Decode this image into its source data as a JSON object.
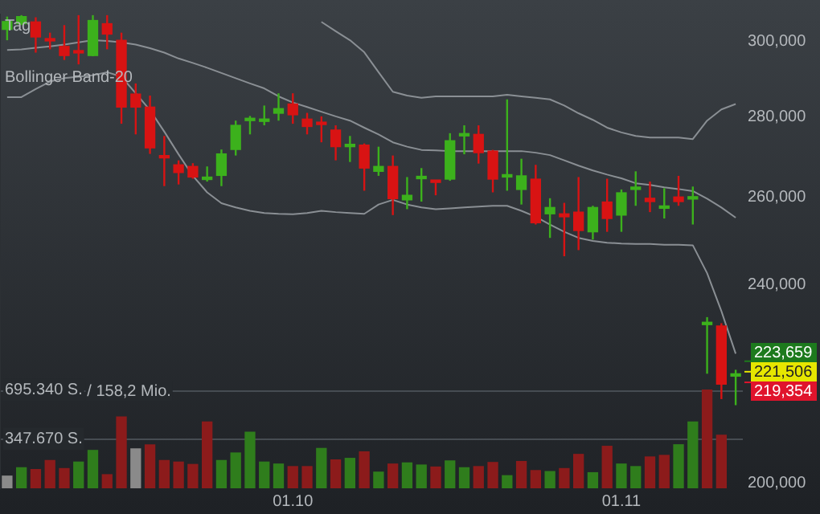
{
  "chart_data": {
    "type": "candlestick",
    "annotations": [
      "Tag",
      "Bollinger Band-20"
    ],
    "categories": [
      null,
      null,
      null,
      null,
      null,
      null,
      null,
      null,
      null,
      null,
      null,
      null,
      null,
      null,
      null,
      null,
      null,
      null,
      null,
      null,
      "01.10",
      null,
      null,
      null,
      null,
      null,
      null,
      null,
      null,
      null,
      null,
      null,
      null,
      null,
      null,
      null,
      null,
      null,
      null,
      null,
      null,
      null,
      null,
      "01.11",
      null,
      null,
      null,
      null,
      null,
      null,
      null,
      null
    ],
    "ohlc": [
      [
        303400,
        307000,
        300400,
        305600
      ],
      [
        305000,
        307400,
        304600,
        307000
      ],
      [
        305500,
        306800,
        297000,
        301300
      ],
      [
        300600,
        302500,
        297900,
        300200
      ],
      [
        298700,
        304600,
        295000,
        296200
      ],
      [
        297100,
        307400,
        293800,
        296900
      ],
      [
        296200,
        307400,
        296000,
        305900
      ],
      [
        305000,
        307400,
        297900,
        302100
      ],
      [
        300400,
        302500,
        278200,
        282500
      ],
      [
        285900,
        288700,
        275500,
        282500
      ],
      [
        282500,
        285500,
        270600,
        272100
      ],
      [
        270000,
        275100,
        262700,
        269600
      ],
      [
        267900,
        269000,
        263100,
        266000
      ],
      [
        267500,
        268300,
        264500,
        264900
      ],
      [
        264300,
        267500,
        263800,
        264900
      ],
      [
        265300,
        271700,
        262700,
        270600
      ],
      [
        271700,
        279000,
        270200,
        277800
      ],
      [
        279000,
        280200,
        275500,
        279600
      ],
      [
        278800,
        282900,
        277800,
        279400
      ],
      [
        280900,
        286100,
        279000,
        282100
      ],
      [
        283300,
        286100,
        278200,
        280500
      ],
      [
        279400,
        281000,
        275500,
        277500
      ],
      [
        278400,
        280100,
        273500,
        278000
      ],
      [
        276600,
        277800,
        269000,
        272400
      ],
      [
        272400,
        275100,
        268600,
        273000
      ],
      [
        272800,
        273200,
        261600,
        267100
      ],
      [
        266300,
        272400,
        265200,
        267500
      ],
      [
        267500,
        270200,
        255800,
        259700
      ],
      [
        259400,
        264900,
        257200,
        260500
      ],
      [
        264500,
        267100,
        259000,
        265000
      ],
      [
        264000,
        264100,
        260500,
        263600
      ],
      [
        264400,
        275800,
        264000,
        273900
      ],
      [
        275100,
        277800,
        270500,
        275700
      ],
      [
        275500,
        277800,
        268200,
        270900
      ],
      [
        271300,
        271600,
        261200,
        264400
      ],
      [
        264900,
        284500,
        261600,
        265500
      ],
      [
        261900,
        269400,
        258300,
        265200
      ],
      [
        264400,
        267900,
        253600,
        254000
      ],
      [
        256100,
        259800,
        250500,
        257600
      ],
      [
        256100,
        258700,
        246300,
        255400
      ],
      [
        256500,
        264900,
        247700,
        252200
      ],
      [
        251900,
        258000,
        250100,
        257600
      ],
      [
        258900,
        264500,
        251900,
        255000
      ],
      [
        255800,
        261900,
        251900,
        261100
      ],
      [
        261900,
        266300,
        258000,
        262400
      ],
      [
        259800,
        263800,
        256500,
        259000
      ],
      [
        257400,
        262200,
        255000,
        257800
      ],
      [
        260100,
        265200,
        258000,
        259000
      ],
      [
        259600,
        262600,
        253600,
        260000
      ],
      [
        231300,
        232900,
        221100,
        231800
      ],
      [
        231000,
        231600,
        216000,
        219000
      ],
      [
        220600,
        221900,
        214800,
        221000
      ]
    ],
    "series": [
      {
        "type": "bar",
        "axis": "y2",
        "values": [
          86,
          145,
          132,
          196,
          139,
          185,
          267,
          96,
          503,
          278,
          306,
          196,
          185,
          168,
          467,
          196,
          249,
          396,
          185,
          171,
          153,
          153,
          281,
          200,
          211,
          257,
          114,
          171,
          179,
          164,
          150,
          193,
          145,
          153,
          182,
          89,
          189,
          125,
          118,
          139,
          239,
          110,
          296,
          171,
          153,
          221,
          232,
          307,
          467,
          692,
          374,
          null
        ],
        "colors": [
          "#8a8a8a",
          "#2f7d1c",
          "#8c1b1b",
          "#8c1b1b",
          "#8c1b1b",
          "#2f7d1c",
          "#2f7d1c",
          "#8c1b1b",
          "#8c1b1b",
          "#8a8a8a",
          "#8c1b1b",
          "#8c1b1b",
          "#8c1b1b",
          "#8c1b1b",
          "#8c1b1b",
          "#2f7d1c",
          "#2f7d1c",
          "#2f7d1c",
          "#2f7d1c",
          "#2f7d1c",
          "#8c1b1b",
          "#8c1b1b",
          "#2f7d1c",
          "#8c1b1b",
          "#2f7d1c",
          "#8c1b1b",
          "#2f7d1c",
          "#8c1b1b",
          "#2f7d1c",
          "#2f7d1c",
          "#8c1b1b",
          "#2f7d1c",
          "#2f7d1c",
          "#8c1b1b",
          "#8c1b1b",
          "#2f7d1c",
          "#8c1b1b",
          "#8c1b1b",
          "#2f7d1c",
          "#8c1b1b",
          "#8c1b1b",
          "#2f7d1c",
          "#8c1b1b",
          "#2f7d1c",
          "#2f7d1c",
          "#8c1b1b",
          "#8c1b1b",
          "#2f7d1c",
          "#2f7d1c",
          "#8c1b1b",
          "#8c1b1b",
          null
        ]
      },
      {
        "type": "line",
        "color": "#8a8f94",
        "values": [
          null,
          null,
          null,
          null,
          null,
          null,
          null,
          null,
          null,
          null,
          null,
          null,
          null,
          null,
          null,
          null,
          null,
          null,
          null,
          null,
          null,
          null,
          305500,
          302900,
          300400,
          297100,
          291700,
          286500,
          285500,
          284900,
          285300,
          285300,
          285300,
          285300,
          285300,
          285700,
          285300,
          284900,
          284500,
          282900,
          280900,
          279200,
          277200,
          276000,
          275100,
          274700,
          274700,
          274700,
          274300,
          279000,
          281900,
          283300
        ]
      },
      {
        "type": "line",
        "color": "#8a8f94",
        "values": [
          297700,
          297900,
          298300,
          298700,
          299200,
          299800,
          300400,
          300200,
          299800,
          299200,
          298200,
          297000,
          295400,
          294200,
          292900,
          291500,
          290100,
          288700,
          287400,
          285300,
          283700,
          282500,
          281300,
          280100,
          279000,
          277200,
          275500,
          273500,
          272400,
          271600,
          271500,
          271300,
          271300,
          271300,
          271300,
          271300,
          271300,
          270900,
          270300,
          269000,
          267700,
          266500,
          265500,
          264600,
          263400,
          263000,
          262400,
          262000,
          261500,
          259700,
          257600,
          255200
        ]
      },
      {
        "type": "line",
        "color": "#8a8f94",
        "values": [
          285100,
          285100,
          287200,
          289200,
          290100,
          290500,
          290900,
          291700,
          290500,
          286100,
          281700,
          276200,
          270500,
          265200,
          261200,
          258600,
          257600,
          256800,
          256300,
          256100,
          256000,
          256300,
          256800,
          256500,
          256300,
          256100,
          258300,
          259400,
          258300,
          257600,
          257200,
          257400,
          257600,
          257800,
          258000,
          258000,
          256800,
          255400,
          253600,
          251900,
          250500,
          249800,
          249400,
          249200,
          249100,
          249100,
          248900,
          248900,
          248800,
          242500,
          234200,
          225200
        ]
      }
    ],
    "ylim": [
      199000,
      307600
    ],
    "yticks": [
      {
        "value": 200000,
        "label": "200,000"
      },
      {
        "value": 240000,
        "label": "240,000"
      },
      {
        "value": 260000,
        "label": "260,000"
      },
      {
        "value": 280000,
        "label": "280,000"
      },
      {
        "value": 300000,
        "label": "300,000"
      }
    ],
    "log": true,
    "y2lim": [
      0,
      3340
    ],
    "y2ticks": [
      {
        "value": 347.67,
        "label": "347.670 S."
      },
      {
        "value": 695.34,
        "label": "695.340 S."
      }
    ],
    "ref_lines": [
      {
        "axis": "y2",
        "value": 347.67
      },
      {
        "axis": "y2",
        "value": 695.34,
        "label": "/ 158,2 Mio."
      },
      {
        "axis": "y",
        "value": 223659,
        "label": "223,659",
        "color": "#1d7a1d"
      },
      {
        "axis": "y",
        "value": 221506,
        "label": "221,506",
        "color": "#e6e600"
      },
      {
        "axis": "y",
        "value": 219354,
        "label": "219,354",
        "color": "#e0142c"
      }
    ],
    "grid": false,
    "legend": false,
    "marker": "none"
  }
}
